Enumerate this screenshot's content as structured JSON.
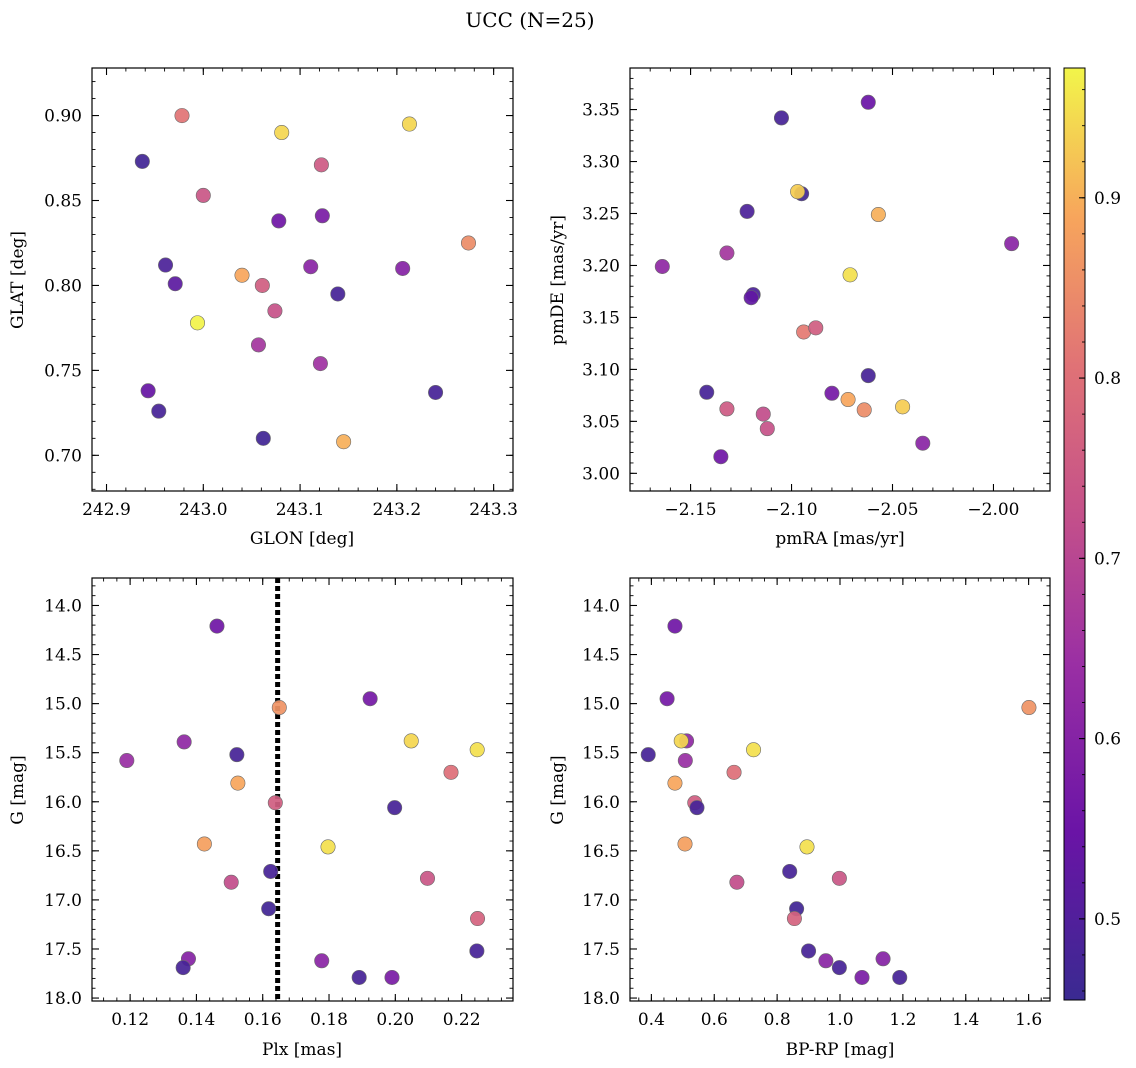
{
  "title": "UCC (N=25)",
  "colorbar": {
    "range": [
      0.455,
      0.972
    ],
    "ticks": [
      0.5,
      0.6,
      0.7,
      0.8,
      0.9
    ],
    "tick_labels": [
      "0.5",
      "0.6",
      "0.7",
      "0.8",
      "0.9"
    ],
    "colormap": "plasma"
  },
  "chart_data": [
    {
      "type": "scatter",
      "id": "glon-glat",
      "xlabel": "GLON [deg]",
      "ylabel": "GLAT [deg]",
      "xlim": [
        242.885,
        243.32
      ],
      "ylim": [
        0.679,
        0.928
      ],
      "xticks": [
        242.9,
        243.0,
        243.1,
        243.2,
        243.3
      ],
      "xtick_labels": [
        "242.9",
        "243.0",
        "243.1",
        "243.2",
        "243.3"
      ],
      "yticks": [
        0.7,
        0.75,
        0.8,
        0.85,
        0.9
      ],
      "ytick_labels": [
        "0.70",
        "0.75",
        "0.80",
        "0.85",
        "0.90"
      ],
      "points": [
        {
          "x": 242.937,
          "y": 0.873,
          "c": 0.47
        },
        {
          "x": 242.978,
          "y": 0.9,
          "c": 0.81
        },
        {
          "x": 243.0,
          "y": 0.853,
          "c": 0.74
        },
        {
          "x": 243.081,
          "y": 0.89,
          "c": 0.94
        },
        {
          "x": 243.213,
          "y": 0.895,
          "c": 0.94
        },
        {
          "x": 243.122,
          "y": 0.871,
          "c": 0.75
        },
        {
          "x": 243.078,
          "y": 0.838,
          "c": 0.56
        },
        {
          "x": 243.123,
          "y": 0.841,
          "c": 0.58
        },
        {
          "x": 243.274,
          "y": 0.825,
          "c": 0.85
        },
        {
          "x": 242.961,
          "y": 0.812,
          "c": 0.49
        },
        {
          "x": 242.971,
          "y": 0.801,
          "c": 0.52
        },
        {
          "x": 243.04,
          "y": 0.806,
          "c": 0.89
        },
        {
          "x": 243.061,
          "y": 0.8,
          "c": 0.76
        },
        {
          "x": 243.111,
          "y": 0.811,
          "c": 0.61
        },
        {
          "x": 243.206,
          "y": 0.81,
          "c": 0.6
        },
        {
          "x": 243.139,
          "y": 0.795,
          "c": 0.48
        },
        {
          "x": 243.074,
          "y": 0.785,
          "c": 0.73
        },
        {
          "x": 242.994,
          "y": 0.778,
          "c": 0.97
        },
        {
          "x": 243.057,
          "y": 0.765,
          "c": 0.66
        },
        {
          "x": 243.121,
          "y": 0.754,
          "c": 0.65
        },
        {
          "x": 242.943,
          "y": 0.738,
          "c": 0.54
        },
        {
          "x": 243.24,
          "y": 0.737,
          "c": 0.48
        },
        {
          "x": 242.954,
          "y": 0.726,
          "c": 0.48
        },
        {
          "x": 243.062,
          "y": 0.71,
          "c": 0.47
        },
        {
          "x": 243.145,
          "y": 0.708,
          "c": 0.9
        }
      ]
    },
    {
      "type": "scatter",
      "id": "pmra-pmde",
      "xlabel": "pmRA [mas/yr]",
      "ylabel": "pmDE [mas/yr]",
      "xlim": [
        -2.18,
        -1.972
      ],
      "ylim": [
        2.983,
        3.39
      ],
      "xticks": [
        -2.15,
        -2.1,
        -2.05,
        -2.0
      ],
      "xtick_labels": [
        "−2.15",
        "−2.10",
        "−2.05",
        "−2.00"
      ],
      "yticks": [
        3.0,
        3.05,
        3.1,
        3.15,
        3.2,
        3.25,
        3.3,
        3.35
      ],
      "ytick_labels": [
        "3.00",
        "3.05",
        "3.10",
        "3.15",
        "3.20",
        "3.25",
        "3.30",
        "3.35"
      ],
      "points": [
        {
          "x": -2.062,
          "y": 3.357,
          "c": 0.55
        },
        {
          "x": -2.105,
          "y": 3.342,
          "c": 0.48
        },
        {
          "x": -2.095,
          "y": 3.269,
          "c": 0.47
        },
        {
          "x": -2.097,
          "y": 3.271,
          "c": 0.93
        },
        {
          "x": -2.122,
          "y": 3.252,
          "c": 0.49
        },
        {
          "x": -2.057,
          "y": 3.249,
          "c": 0.9
        },
        {
          "x": -2.164,
          "y": 3.199,
          "c": 0.62
        },
        {
          "x": -2.132,
          "y": 3.212,
          "c": 0.66
        },
        {
          "x": -1.991,
          "y": 3.221,
          "c": 0.61
        },
        {
          "x": -2.071,
          "y": 3.191,
          "c": 0.95
        },
        {
          "x": -2.119,
          "y": 3.172,
          "c": 0.49
        },
        {
          "x": -2.12,
          "y": 3.169,
          "c": 0.53
        },
        {
          "x": -2.094,
          "y": 3.136,
          "c": 0.82
        },
        {
          "x": -2.088,
          "y": 3.14,
          "c": 0.76
        },
        {
          "x": -2.062,
          "y": 3.094,
          "c": 0.48
        },
        {
          "x": -2.142,
          "y": 3.078,
          "c": 0.48
        },
        {
          "x": -2.08,
          "y": 3.077,
          "c": 0.57
        },
        {
          "x": -2.072,
          "y": 3.071,
          "c": 0.89
        },
        {
          "x": -2.045,
          "y": 3.064,
          "c": 0.93
        },
        {
          "x": -2.064,
          "y": 3.061,
          "c": 0.85
        },
        {
          "x": -2.132,
          "y": 3.062,
          "c": 0.75
        },
        {
          "x": -2.114,
          "y": 3.057,
          "c": 0.72
        },
        {
          "x": -2.112,
          "y": 3.043,
          "c": 0.73
        },
        {
          "x": -2.035,
          "y": 3.029,
          "c": 0.61
        },
        {
          "x": -2.135,
          "y": 3.016,
          "c": 0.56
        }
      ]
    },
    {
      "type": "scatter",
      "id": "plx-g",
      "xlabel": "Plx [mas]",
      "ylabel": "G [mag]",
      "xlim": [
        0.1085,
        0.2355
      ],
      "ylim": [
        18.03,
        13.72
      ],
      "y_inverted": true,
      "xticks": [
        0.12,
        0.14,
        0.16,
        0.18,
        0.2,
        0.22
      ],
      "xtick_labels": [
        "0.12",
        "0.14",
        "0.16",
        "0.18",
        "0.20",
        "0.22"
      ],
      "yticks": [
        14.0,
        14.5,
        15.0,
        15.5,
        16.0,
        16.5,
        17.0,
        17.5,
        18.0
      ],
      "ytick_labels": [
        "14.0",
        "14.5",
        "15.0",
        "15.5",
        "16.0",
        "16.5",
        "17.0",
        "17.5",
        "18.0"
      ],
      "vline": {
        "x": 0.1645,
        "style": "dotted"
      },
      "points": [
        {
          "x": 0.1462,
          "y": 14.21,
          "c": 0.56
        },
        {
          "x": 0.1924,
          "y": 14.95,
          "c": 0.57
        },
        {
          "x": 0.165,
          "y": 15.04,
          "c": 0.86
        },
        {
          "x": 0.2048,
          "y": 15.38,
          "c": 0.94
        },
        {
          "x": 0.1363,
          "y": 15.39,
          "c": 0.62
        },
        {
          "x": 0.2247,
          "y": 15.47,
          "c": 0.95
        },
        {
          "x": 0.1522,
          "y": 15.52,
          "c": 0.48
        },
        {
          "x": 0.119,
          "y": 15.58,
          "c": 0.64
        },
        {
          "x": 0.2168,
          "y": 15.7,
          "c": 0.8
        },
        {
          "x": 0.1525,
          "y": 15.81,
          "c": 0.89
        },
        {
          "x": 0.1638,
          "y": 16.01,
          "c": 0.76
        },
        {
          "x": 0.1998,
          "y": 16.06,
          "c": 0.48
        },
        {
          "x": 0.1424,
          "y": 16.43,
          "c": 0.88
        },
        {
          "x": 0.1797,
          "y": 16.46,
          "c": 0.95
        },
        {
          "x": 0.1624,
          "y": 16.71,
          "c": 0.48
        },
        {
          "x": 0.2097,
          "y": 16.78,
          "c": 0.74
        },
        {
          "x": 0.1505,
          "y": 16.82,
          "c": 0.72
        },
        {
          "x": 0.1618,
          "y": 17.09,
          "c": 0.47
        },
        {
          "x": 0.2248,
          "y": 17.19,
          "c": 0.77
        },
        {
          "x": 0.2246,
          "y": 17.52,
          "c": 0.48
        },
        {
          "x": 0.1376,
          "y": 17.6,
          "c": 0.6
        },
        {
          "x": 0.1778,
          "y": 17.62,
          "c": 0.61
        },
        {
          "x": 0.136,
          "y": 17.69,
          "c": 0.48
        },
        {
          "x": 0.1891,
          "y": 17.79,
          "c": 0.48
        },
        {
          "x": 0.199,
          "y": 17.79,
          "c": 0.58
        }
      ]
    },
    {
      "type": "scatter",
      "id": "bprp-g",
      "xlabel": "BP-RP [mag]",
      "ylabel": "G [mag]",
      "xlim": [
        0.332,
        1.668
      ],
      "ylim": [
        18.03,
        13.72
      ],
      "y_inverted": true,
      "xticks": [
        0.4,
        0.6,
        0.8,
        1.0,
        1.2,
        1.4,
        1.6
      ],
      "xtick_labels": [
        "0.4",
        "0.6",
        "0.8",
        "1.0",
        "1.2",
        "1.4",
        "1.6"
      ],
      "yticks": [
        14.0,
        14.5,
        15.0,
        15.5,
        16.0,
        16.5,
        17.0,
        17.5,
        18.0
      ],
      "ytick_labels": [
        "14.0",
        "14.5",
        "15.0",
        "15.5",
        "16.0",
        "16.5",
        "17.0",
        "17.5",
        "18.0"
      ],
      "points": [
        {
          "x": 0.475,
          "y": 14.21,
          "c": 0.56
        },
        {
          "x": 0.45,
          "y": 14.95,
          "c": 0.57
        },
        {
          "x": 1.601,
          "y": 15.04,
          "c": 0.86
        },
        {
          "x": 0.512,
          "y": 15.38,
          "c": 0.62
        },
        {
          "x": 0.495,
          "y": 15.38,
          "c": 0.94
        },
        {
          "x": 0.725,
          "y": 15.47,
          "c": 0.95
        },
        {
          "x": 0.39,
          "y": 15.52,
          "c": 0.48
        },
        {
          "x": 0.508,
          "y": 15.58,
          "c": 0.64
        },
        {
          "x": 0.663,
          "y": 15.7,
          "c": 0.8
        },
        {
          "x": 0.475,
          "y": 15.81,
          "c": 0.89
        },
        {
          "x": 0.538,
          "y": 16.01,
          "c": 0.76
        },
        {
          "x": 0.545,
          "y": 16.06,
          "c": 0.48
        },
        {
          "x": 0.507,
          "y": 16.43,
          "c": 0.88
        },
        {
          "x": 0.895,
          "y": 16.46,
          "c": 0.95
        },
        {
          "x": 0.84,
          "y": 16.71,
          "c": 0.48
        },
        {
          "x": 0.998,
          "y": 16.78,
          "c": 0.74
        },
        {
          "x": 0.672,
          "y": 16.82,
          "c": 0.72
        },
        {
          "x": 0.862,
          "y": 17.09,
          "c": 0.47
        },
        {
          "x": 0.855,
          "y": 17.19,
          "c": 0.77
        },
        {
          "x": 0.9,
          "y": 17.52,
          "c": 0.48
        },
        {
          "x": 1.137,
          "y": 17.6,
          "c": 0.6
        },
        {
          "x": 0.955,
          "y": 17.62,
          "c": 0.61
        },
        {
          "x": 0.998,
          "y": 17.69,
          "c": 0.48
        },
        {
          "x": 1.19,
          "y": 17.79,
          "c": 0.48
        },
        {
          "x": 1.07,
          "y": 17.79,
          "c": 0.58
        }
      ]
    }
  ]
}
